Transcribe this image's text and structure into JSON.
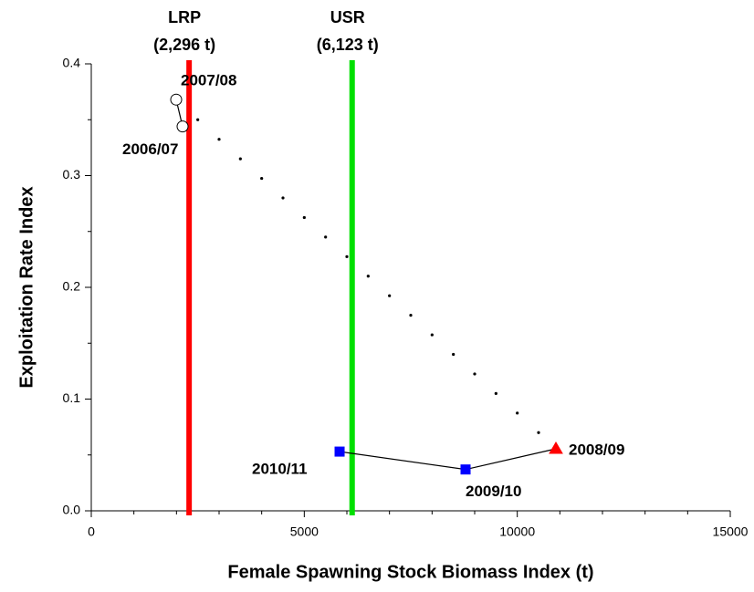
{
  "chart_data": {
    "type": "scatter",
    "xlabel": "Female Spawning Stock Biomass Index (t)",
    "ylabel": "Exploitation Rate Index",
    "xlim": [
      0,
      15000
    ],
    "ylim": [
      0,
      0.4
    ],
    "xticks": [
      0,
      5000,
      10000,
      15000
    ],
    "xminorticks": [
      1000,
      2000,
      3000,
      4000,
      6000,
      7000,
      8000,
      9000,
      11000,
      12000,
      13000,
      14000
    ],
    "yticks": [
      {
        "value": 0,
        "label": "0.0"
      },
      0.1,
      0.2,
      0.3,
      0.4
    ],
    "yminorticks": [
      0.05,
      0.15,
      0.25,
      0.35
    ],
    "reference_lines": [
      {
        "label": "LRP",
        "sublabel": "(2,296 t)",
        "value": 2296,
        "color": "#ff0000"
      },
      {
        "label": "USR",
        "sublabel": "(6,123 t)",
        "value": 6123,
        "color": "#00e000"
      }
    ],
    "series": [
      {
        "style": "dots",
        "color": "#000000",
        "x": [
          2500,
          3000,
          3500,
          4000,
          4500,
          5000,
          5500,
          6000,
          6500,
          7000,
          7500,
          8000,
          8500,
          9000,
          9500,
          10000,
          10500
        ],
        "values": [
          0.35,
          0.3325,
          0.315,
          0.2975,
          0.28,
          0.2625,
          0.245,
          0.2275,
          0.21,
          0.1925,
          0.175,
          0.1575,
          0.14,
          0.1225,
          0.105,
          0.0875,
          0.07
        ]
      },
      {
        "style": "connected",
        "color": "#000000",
        "x": [
          2143,
          1993
        ],
        "values": [
          0.344,
          0.368
        ],
        "markers": [
          "circle",
          "circle"
        ],
        "colors": [
          "#ffffff",
          "#ffffff"
        ],
        "labels": [
          "2006/07",
          "2007/08"
        ]
      },
      {
        "style": "connected",
        "color": "#000000",
        "x": [
          10907,
          8786,
          5829
        ],
        "values": [
          0.0555,
          0.037,
          0.053
        ],
        "markers": [
          "triangle",
          "square",
          "square"
        ],
        "colors": [
          "#ff0000",
          "#0000ff",
          "#0000ff"
        ],
        "labels": [
          "2008/09",
          "2009/10",
          "2010/11"
        ]
      }
    ]
  }
}
